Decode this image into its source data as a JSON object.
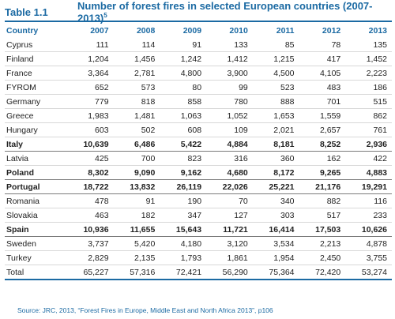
{
  "title": {
    "label": "Table 1.1",
    "text": "Number of forest fires in selected European countries (2007-2013)",
    "footnote": "5"
  },
  "table": {
    "headers": [
      "Country",
      "2007",
      "2008",
      "2009",
      "2010",
      "2011",
      "2012",
      "2013"
    ],
    "rows": [
      {
        "country": "Cyprus",
        "values": [
          "111",
          "114",
          "91",
          "133",
          "85",
          "78",
          "135"
        ],
        "bold": false
      },
      {
        "country": "Finland",
        "values": [
          "1,204",
          "1,456",
          "1,242",
          "1,412",
          "1,215",
          "417",
          "1,452"
        ],
        "bold": false
      },
      {
        "country": "France",
        "values": [
          "3,364",
          "2,781",
          "4,800",
          "3,900",
          "4,500",
          "4,105",
          "2,223"
        ],
        "bold": false
      },
      {
        "country": "FYROM",
        "values": [
          "652",
          "573",
          "80",
          "99",
          "523",
          "483",
          "186"
        ],
        "bold": false
      },
      {
        "country": "Germany",
        "values": [
          "779",
          "818",
          "858",
          "780",
          "888",
          "701",
          "515"
        ],
        "bold": false
      },
      {
        "country": "Greece",
        "values": [
          "1,983",
          "1,481",
          "1,063",
          "1,052",
          "1,653",
          "1,559",
          "862"
        ],
        "bold": false
      },
      {
        "country": "Hungary",
        "values": [
          "603",
          "502",
          "608",
          "109",
          "2,021",
          "2,657",
          "761"
        ],
        "bold": false
      },
      {
        "country": "Italy",
        "values": [
          "10,639",
          "6,486",
          "5,422",
          "4,884",
          "8,181",
          "8,252",
          "2,936"
        ],
        "bold": true
      },
      {
        "country": "Latvia",
        "values": [
          "425",
          "700",
          "823",
          "316",
          "360",
          "162",
          "422"
        ],
        "bold": false
      },
      {
        "country": "Poland",
        "values": [
          "8,302",
          "9,090",
          "9,162",
          "4,680",
          "8,172",
          "9,265",
          "4,883"
        ],
        "bold": true
      },
      {
        "country": "Portugal",
        "values": [
          "18,722",
          "13,832",
          "26,119",
          "22,026",
          "25,221",
          "21,176",
          "19,291"
        ],
        "bold": true
      },
      {
        "country": "Romania",
        "values": [
          "478",
          "91",
          "190",
          "70",
          "340",
          "882",
          "116"
        ],
        "bold": false
      },
      {
        "country": "Slovakia",
        "values": [
          "463",
          "182",
          "347",
          "127",
          "303",
          "517",
          "233"
        ],
        "bold": false
      },
      {
        "country": "Spain",
        "values": [
          "10,936",
          "11,655",
          "15,643",
          "11,721",
          "16,414",
          "17,503",
          "10,626"
        ],
        "bold": true
      },
      {
        "country": "Sweden",
        "values": [
          "3,737",
          "5,420",
          "4,180",
          "3,120",
          "3,534",
          "2,213",
          "4,878"
        ],
        "bold": false
      },
      {
        "country": "Turkey",
        "values": [
          "2,829",
          "2,135",
          "1,793",
          "1,861",
          "1,954",
          "2,450",
          "3,755"
        ],
        "bold": false
      },
      {
        "country": "Total",
        "values": [
          "65,227",
          "57,316",
          "72,421",
          "56,290",
          "75,364",
          "72,420",
          "53,274"
        ],
        "bold": false,
        "total": true
      }
    ]
  },
  "source": "Source: JRC, 2013, “Forest Fires in Europe, Middle East and North Africa 2013”, p106"
}
